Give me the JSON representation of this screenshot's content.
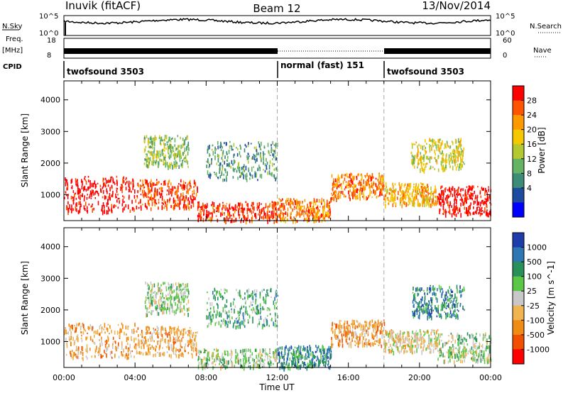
{
  "header": {
    "station": "Inuvik (fitACF)",
    "beam": "Beam 12",
    "date": "13/Nov/2014"
  },
  "strip_labels": {
    "nsky": "N.Sky",
    "nsky_top": "10^5",
    "nsky_bottom": "10^0",
    "nsearch": "N.Search",
    "nsearch_top": "10^5",
    "nsearch_bottom": "10^0",
    "freq_line1": "Freq.",
    "freq_line2": "[MHz]",
    "freq_top": "18",
    "freq_bottom": "8",
    "nave": "Nave",
    "nave_top": "60",
    "nave_bottom": "0",
    "cpid": "CPID"
  },
  "cpid_modes": [
    {
      "label": "twofsound 3503",
      "start_hour": 0,
      "end_hour": 12
    },
    {
      "label": "normal (fast) 151",
      "start_hour": 12,
      "end_hour": 18
    },
    {
      "label": "twofsound 3503",
      "start_hour": 18,
      "end_hour": 24
    }
  ],
  "chart_data": [
    {
      "type": "heatmap",
      "name": "Power",
      "ylabel": "Slant Range [km]",
      "xlabel": "Time UT",
      "xticks": [
        "00:00",
        "04:00",
        "08:00",
        "12:00",
        "16:00",
        "20:00",
        "00:00"
      ],
      "xlim_hours": [
        0,
        24
      ],
      "yticks": [
        "1000",
        "2000",
        "3000",
        "4000"
      ],
      "ylim": [
        180,
        4600
      ],
      "colorbar": {
        "label": "Power [dB]",
        "ticks": [
          "28",
          "24",
          "20",
          "16",
          "12",
          "8",
          "4"
        ],
        "colors": [
          "#ff0000",
          "#ff5500",
          "#ff9900",
          "#f5c800",
          "#b4c832",
          "#64b464",
          "#3c8c78",
          "#1e4ba0",
          "#0000ff"
        ]
      },
      "regions": [
        {
          "t0": 0.0,
          "t1": 4.0,
          "r0": 500,
          "r1": 1600,
          "level": 0
        },
        {
          "t0": 4.0,
          "t1": 7.5,
          "r0": 600,
          "r1": 1500,
          "level": 1
        },
        {
          "t0": 7.5,
          "t1": 12.0,
          "r0": 200,
          "r1": 800,
          "level": 1
        },
        {
          "t0": 12.0,
          "t1": 15.0,
          "r0": 200,
          "r1": 900,
          "level": 2
        },
        {
          "t0": 15.0,
          "t1": 18.0,
          "r0": 900,
          "r1": 1700,
          "level": 2
        },
        {
          "t0": 18.0,
          "t1": 21.0,
          "r0": 700,
          "r1": 1400,
          "level": 3
        },
        {
          "t0": 21.0,
          "t1": 24.0,
          "r0": 400,
          "r1": 1300,
          "level": 0
        },
        {
          "t0": 4.5,
          "t1": 7.0,
          "r0": 1900,
          "r1": 2900,
          "level": 5
        },
        {
          "t0": 8.0,
          "t1": 12.0,
          "r0": 1500,
          "r1": 2700,
          "level": 6
        },
        {
          "t0": 19.5,
          "t1": 22.5,
          "r0": 1800,
          "r1": 2800,
          "level": 4
        }
      ]
    },
    {
      "type": "heatmap",
      "name": "Velocity",
      "ylabel": "Slant Range [km]",
      "xlabel": "Time UT",
      "xticks": [
        "00:00",
        "04:00",
        "08:00",
        "12:00",
        "16:00",
        "20:00",
        "00:00"
      ],
      "xlim_hours": [
        0,
        24
      ],
      "yticks": [
        "1000",
        "2000",
        "3000",
        "4000"
      ],
      "ylim": [
        180,
        4600
      ],
      "colorbar": {
        "label": "Velocity [m s^-1]",
        "ticks": [
          "1000",
          "500",
          "100",
          "25",
          "-25",
          "-100",
          "-500",
          "-1000"
        ],
        "colors": [
          "#1e3caa",
          "#2d78b4",
          "#28915a",
          "#5ac846",
          "#c8c8c8",
          "#f0b450",
          "#f08c14",
          "#f05000",
          "#ff0000"
        ]
      },
      "regions": [
        {
          "t0": 0.0,
          "t1": 4.0,
          "r0": 500,
          "r1": 1600,
          "level": 6
        },
        {
          "t0": 4.0,
          "t1": 7.5,
          "r0": 600,
          "r1": 1500,
          "level": 6
        },
        {
          "t0": 7.5,
          "t1": 12.0,
          "r0": 200,
          "r1": 800,
          "level": 4
        },
        {
          "t0": 12.0,
          "t1": 15.0,
          "r0": 200,
          "r1": 900,
          "level": 2
        },
        {
          "t0": 15.0,
          "t1": 18.0,
          "r0": 900,
          "r1": 1700,
          "level": 6
        },
        {
          "t0": 18.0,
          "t1": 21.0,
          "r0": 700,
          "r1": 1400,
          "level": 5
        },
        {
          "t0": 21.0,
          "t1": 24.0,
          "r0": 400,
          "r1": 1300,
          "level": 4
        },
        {
          "t0": 4.5,
          "t1": 7.0,
          "r0": 1900,
          "r1": 2900,
          "level": 4
        },
        {
          "t0": 8.0,
          "t1": 12.0,
          "r0": 1500,
          "r1": 2700,
          "level": 3
        },
        {
          "t0": 19.5,
          "t1": 22.5,
          "r0": 1800,
          "r1": 2800,
          "level": 2
        }
      ]
    }
  ]
}
